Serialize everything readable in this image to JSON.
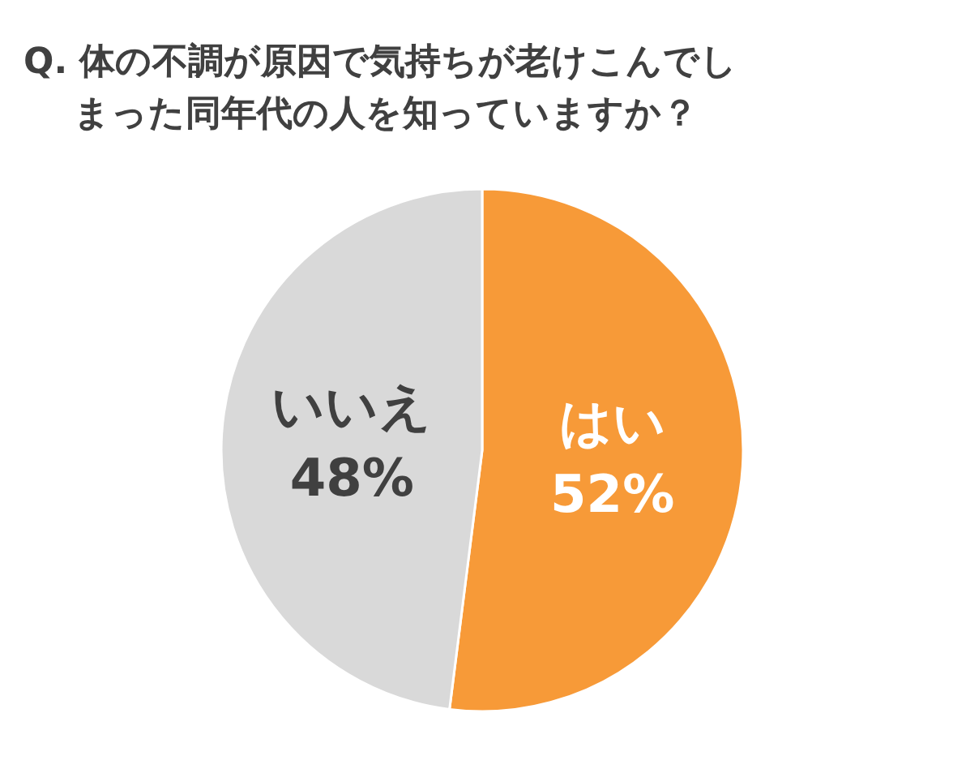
{
  "chart_data": {
    "type": "pie",
    "title": "Q. 体の不調が原因で気持ちが老けこんでしまった同年代の人を知っていますか？",
    "categories": [
      "はい",
      "いいえ"
    ],
    "values": [
      52,
      48
    ],
    "colors": [
      "#f79a38",
      "#d9d9d9"
    ],
    "value_labels": [
      "52%",
      "48%"
    ]
  }
}
